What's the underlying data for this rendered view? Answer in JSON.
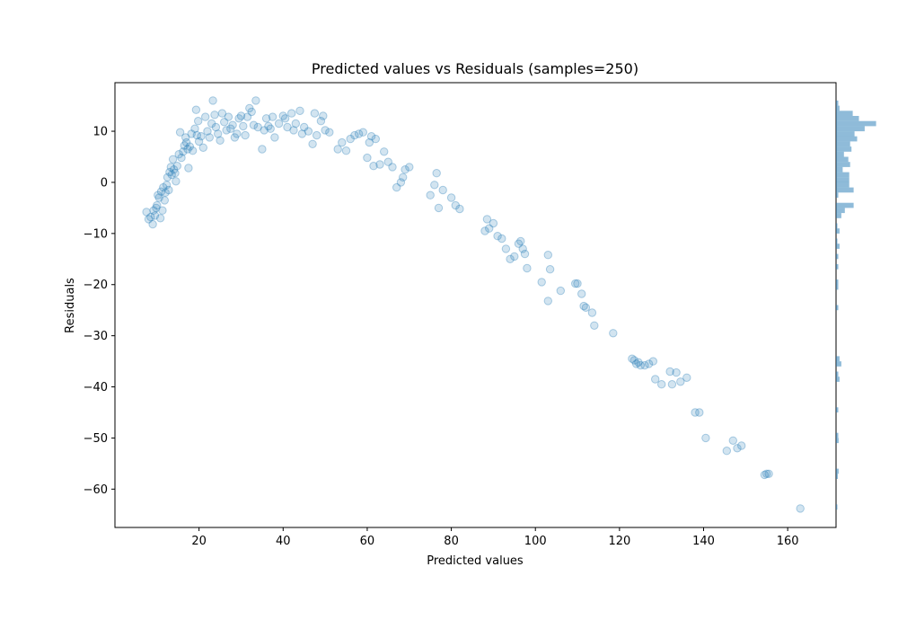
{
  "chart_data": {
    "type": "scatter",
    "title": "Predicted values vs Residuals (samples=250)",
    "xlabel": "Predicted values",
    "ylabel": "Residuals",
    "xlim": [
      0,
      171.5
    ],
    "ylim": [
      -67.5,
      19.5
    ],
    "xticks": [
      20,
      40,
      60,
      80,
      100,
      120,
      140,
      160
    ],
    "yticks": [
      -60,
      -50,
      -40,
      -30,
      -20,
      -10,
      0,
      10
    ],
    "grid": false,
    "point_color": "#1f77b4",
    "point_alpha": 0.2,
    "histogram_color": "#1f77b4",
    "histogram_alpha": 0.5,
    "points": [
      [
        7.5,
        -5.8
      ],
      [
        8,
        -7.2
      ],
      [
        8.5,
        -6.8
      ],
      [
        9,
        -8.2
      ],
      [
        9.2,
        -5.5
      ],
      [
        9.5,
        -6.5
      ],
      [
        9.8,
        -5.0
      ],
      [
        10,
        -4.5
      ],
      [
        10.2,
        -2.5
      ],
      [
        10.5,
        -3.0
      ],
      [
        10.8,
        -7.0
      ],
      [
        11,
        -1.8
      ],
      [
        11.3,
        -5.5
      ],
      [
        11.5,
        -1.0
      ],
      [
        11.8,
        -3.5
      ],
      [
        12,
        -2.0
      ],
      [
        12.3,
        -0.5
      ],
      [
        12.5,
        1.0
      ],
      [
        12.8,
        -1.5
      ],
      [
        13,
        2.0
      ],
      [
        13.3,
        3.0
      ],
      [
        13.5,
        1.5
      ],
      [
        13.8,
        4.5
      ],
      [
        14,
        2.5
      ],
      [
        14.3,
        1.8
      ],
      [
        14.5,
        0.2
      ],
      [
        14.8,
        3.2
      ],
      [
        15.2,
        5.5
      ],
      [
        15.5,
        9.8
      ],
      [
        15.8,
        4.8
      ],
      [
        16.2,
        6.0
      ],
      [
        16.5,
        7.2
      ],
      [
        16.8,
        8.8
      ],
      [
        17,
        7.8
      ],
      [
        17.3,
        6.5
      ],
      [
        17.5,
        2.8
      ],
      [
        17.8,
        7.0
      ],
      [
        18.2,
        9.5
      ],
      [
        18.5,
        6.2
      ],
      [
        19,
        10.5
      ],
      [
        19.3,
        14.2
      ],
      [
        19.5,
        9.2
      ],
      [
        19.8,
        12.0
      ],
      [
        20,
        8.0
      ],
      [
        20.5,
        9.0
      ],
      [
        21,
        6.8
      ],
      [
        21.5,
        12.8
      ],
      [
        22,
        10.0
      ],
      [
        22.5,
        8.8
      ],
      [
        23,
        11.5
      ],
      [
        23.3,
        16.0
      ],
      [
        23.7,
        13.2
      ],
      [
        24,
        10.8
      ],
      [
        24.5,
        9.5
      ],
      [
        25,
        8.2
      ],
      [
        25.5,
        13.5
      ],
      [
        26,
        11.8
      ],
      [
        26.5,
        10.2
      ],
      [
        27,
        12.8
      ],
      [
        27.5,
        10.5
      ],
      [
        28,
        11.2
      ],
      [
        28.5,
        8.8
      ],
      [
        29,
        9.5
      ],
      [
        29.5,
        12.5
      ],
      [
        30,
        13.0
      ],
      [
        30.5,
        11.0
      ],
      [
        31,
        9.2
      ],
      [
        31.5,
        12.8
      ],
      [
        32,
        14.5
      ],
      [
        32.5,
        13.8
      ],
      [
        33,
        11.2
      ],
      [
        33.5,
        16.0
      ],
      [
        34,
        10.8
      ],
      [
        35,
        6.5
      ],
      [
        35.5,
        10.2
      ],
      [
        36,
        12.5
      ],
      [
        36.5,
        11.0
      ],
      [
        37,
        10.5
      ],
      [
        37.5,
        12.8
      ],
      [
        38,
        8.8
      ],
      [
        39,
        11.5
      ],
      [
        40,
        13.0
      ],
      [
        40.5,
        12.5
      ],
      [
        41,
        10.8
      ],
      [
        42,
        13.5
      ],
      [
        42.5,
        10.2
      ],
      [
        43,
        11.5
      ],
      [
        44,
        14.0
      ],
      [
        44.5,
        9.5
      ],
      [
        45,
        10.8
      ],
      [
        46,
        10.0
      ],
      [
        47,
        7.5
      ],
      [
        47.5,
        13.5
      ],
      [
        48,
        9.2
      ],
      [
        49,
        12.0
      ],
      [
        49.5,
        13.0
      ],
      [
        50,
        10.2
      ],
      [
        51,
        9.8
      ],
      [
        53,
        6.5
      ],
      [
        54,
        7.8
      ],
      [
        55,
        6.2
      ],
      [
        56,
        8.5
      ],
      [
        57,
        9.2
      ],
      [
        58,
        9.5
      ],
      [
        59,
        9.8
      ],
      [
        60,
        4.8
      ],
      [
        60.5,
        7.8
      ],
      [
        61,
        9.0
      ],
      [
        61.5,
        3.2
      ],
      [
        62,
        8.5
      ],
      [
        63,
        3.5
      ],
      [
        64,
        6.0
      ],
      [
        65,
        4.0
      ],
      [
        66,
        3.0
      ],
      [
        67,
        -1.0
      ],
      [
        68,
        0.0
      ],
      [
        68.5,
        1.0
      ],
      [
        69,
        2.5
      ],
      [
        70,
        3.0
      ],
      [
        75,
        -2.5
      ],
      [
        76,
        -0.5
      ],
      [
        76.5,
        1.8
      ],
      [
        77,
        -5.0
      ],
      [
        78,
        -1.5
      ],
      [
        80,
        -3.0
      ],
      [
        81,
        -4.5
      ],
      [
        82,
        -5.2
      ],
      [
        88,
        -9.5
      ],
      [
        88.5,
        -7.2
      ],
      [
        89,
        -9.0
      ],
      [
        90,
        -8.0
      ],
      [
        91,
        -10.5
      ],
      [
        92,
        -11.0
      ],
      [
        93,
        -13.0
      ],
      [
        94,
        -15.0
      ],
      [
        95,
        -14.5
      ],
      [
        96,
        -12.0
      ],
      [
        96.5,
        -11.5
      ],
      [
        97,
        -13.0
      ],
      [
        97.5,
        -14.0
      ],
      [
        98,
        -16.8
      ],
      [
        101.5,
        -19.5
      ],
      [
        103,
        -14.2
      ],
      [
        103.5,
        -17.0
      ],
      [
        103,
        -23.2
      ],
      [
        106,
        -21.2
      ],
      [
        109.5,
        -19.8
      ],
      [
        110,
        -19.8
      ],
      [
        111,
        -21.8
      ],
      [
        111.5,
        -24.2
      ],
      [
        112,
        -24.5
      ],
      [
        113.5,
        -25.5
      ],
      [
        114,
        -28.0
      ],
      [
        118.5,
        -29.5
      ],
      [
        123,
        -34.5
      ],
      [
        123.5,
        -34.8
      ],
      [
        124,
        -35.5
      ],
      [
        124.5,
        -35.2
      ],
      [
        125,
        -35.8
      ],
      [
        126,
        -35.8
      ],
      [
        127,
        -35.5
      ],
      [
        128,
        -35.0
      ],
      [
        128.5,
        -38.5
      ],
      [
        130,
        -39.5
      ],
      [
        132,
        -37.0
      ],
      [
        132.5,
        -39.5
      ],
      [
        133.5,
        -37.2
      ],
      [
        134.5,
        -39.0
      ],
      [
        136,
        -38.2
      ],
      [
        138,
        -45.0
      ],
      [
        139,
        -45.0
      ],
      [
        140.5,
        -50.0
      ],
      [
        145.5,
        -52.5
      ],
      [
        147,
        -50.5
      ],
      [
        148,
        -52.0
      ],
      [
        149,
        -51.5
      ],
      [
        154.5,
        -57.2
      ],
      [
        155,
        -57.0
      ],
      [
        155.5,
        -57.0
      ],
      [
        163,
        -63.8
      ]
    ],
    "histogram": {
      "orientation": "horizontal",
      "bin_width": 1.0,
      "bins": [
        [
          15,
          0.5
        ],
        [
          14,
          0.8
        ],
        [
          13,
          3.8
        ],
        [
          12,
          5.2
        ],
        [
          11,
          9.1
        ],
        [
          10,
          6.5
        ],
        [
          9,
          4.2
        ],
        [
          8,
          4.8
        ],
        [
          7,
          3.2
        ],
        [
          6,
          3.5
        ],
        [
          5,
          1.8
        ],
        [
          4,
          2.8
        ],
        [
          3,
          3.2
        ],
        [
          2,
          1.5
        ],
        [
          1,
          3.0
        ],
        [
          0,
          3.0
        ],
        [
          -1,
          3.0
        ],
        [
          -2,
          4.0
        ],
        [
          -3,
          0.5
        ],
        [
          -5,
          4.0
        ],
        [
          -6,
          2.0
        ],
        [
          -7,
          1.2
        ],
        [
          -9,
          0.3
        ],
        [
          -10,
          0.8
        ],
        [
          -12,
          0.3
        ],
        [
          -13,
          0.8
        ],
        [
          -15,
          0.5
        ],
        [
          -17,
          0.5
        ],
        [
          -20,
          0.5
        ],
        [
          -21,
          0.5
        ],
        [
          -25,
          0.5
        ],
        [
          -35,
          0.8
        ],
        [
          -36,
          1.2
        ],
        [
          -38,
          0.5
        ],
        [
          -39,
          0.8
        ],
        [
          -45,
          0.5
        ],
        [
          -50,
          0.5
        ],
        [
          -51,
          0.6
        ],
        [
          -57,
          0.6
        ],
        [
          -58,
          0.4
        ],
        [
          -64,
          0.3
        ]
      ]
    }
  }
}
